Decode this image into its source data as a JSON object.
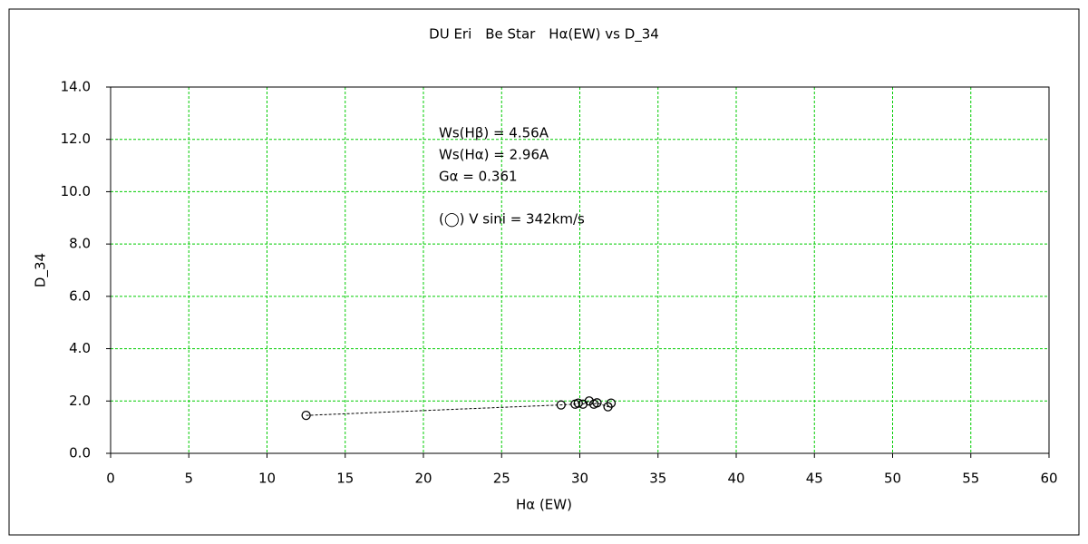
{
  "chart_data": {
    "type": "scatter",
    "title": "DU Eri　Be Star　Hα(EW) vs D_34",
    "x_label": "Hα (EW)",
    "y_label": "D_34",
    "annotations": [
      "Ws(Hβ) = 4.56A",
      "Ws(Hα) = 2.96A",
      "Gα = 0.361",
      "(◯) V sini = 342km/s"
    ],
    "x": [
      12.5,
      28.8,
      29.7,
      29.9,
      30.2,
      30.6,
      30.9,
      31.1,
      31.8,
      32.0
    ],
    "values": [
      1.45,
      1.85,
      1.88,
      1.92,
      1.88,
      2.0,
      1.88,
      1.93,
      1.78,
      1.92
    ],
    "color": "#000000",
    "line_style": "dashed",
    "grid": true,
    "grid_color": "#00cc00",
    "xlim": [
      0,
      60
    ],
    "xticks": [
      0,
      5,
      10,
      15,
      20,
      25,
      30,
      35,
      40,
      45,
      50,
      55,
      60
    ],
    "ylim": [
      0,
      14
    ],
    "yticks": [
      {
        "value": 0,
        "label": "0.0"
      },
      {
        "value": 2,
        "label": "2.0"
      },
      {
        "value": 4,
        "label": "4.0"
      },
      {
        "value": 6,
        "label": "6.0"
      },
      {
        "value": 8,
        "label": "8.0"
      },
      {
        "value": 10,
        "label": "10.0"
      },
      {
        "value": 12,
        "label": "12.0"
      },
      {
        "value": 14,
        "label": "14.0"
      }
    ]
  }
}
